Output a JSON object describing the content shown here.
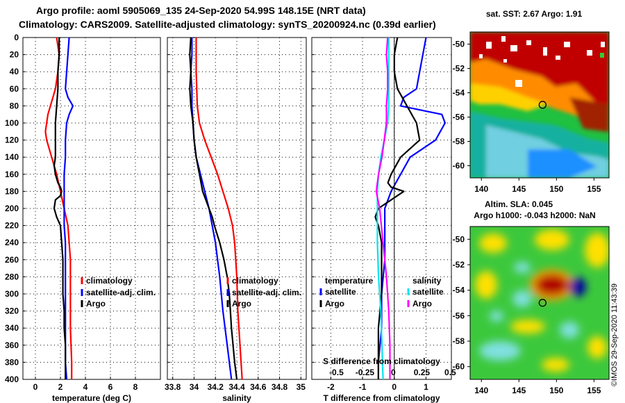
{
  "header": {
    "line1": "Argo profile: aoml 5905069_135 24-Sep-2020 54.99S 148.15E (NRT data)",
    "line2": "Climatology: CARS2009. Satellite-adjusted climatology: synTS_20200924.nc (0.39d earlier)"
  },
  "colors": {
    "climatology": "#ff0000",
    "satellite": "#0000ff",
    "argo": "#000000",
    "sat_salinity": "#00e5ee",
    "argo_salinity": "#ff00ff"
  },
  "chart_data": [
    {
      "type": "line",
      "name": "temperature-profile",
      "xlabel": "temperature (deg C)",
      "xlim": [
        -1,
        10
      ],
      "ylim": [
        400,
        0
      ],
      "x_ticks": [
        "0",
        "2",
        "4",
        "6",
        "8"
      ],
      "x_tick_values": [
        0,
        2,
        4,
        6,
        8
      ],
      "y_ticks": [
        "0",
        "20",
        "40",
        "60",
        "80",
        "100",
        "120",
        "140",
        "160",
        "180",
        "200",
        "220",
        "240",
        "260",
        "280",
        "300",
        "320",
        "340",
        "360",
        "380",
        "400"
      ],
      "y_tick_values": [
        0,
        20,
        40,
        60,
        80,
        100,
        120,
        140,
        160,
        180,
        200,
        220,
        240,
        260,
        280,
        300,
        320,
        340,
        360,
        380,
        400
      ],
      "legend": [
        "climatology",
        "satellite-adj. clim.",
        "Argo"
      ],
      "series": [
        {
          "name": "climatology",
          "color": "#ff0000",
          "depth": [
            0,
            20,
            40,
            60,
            80,
            90,
            100,
            110,
            120,
            130,
            140,
            160,
            180,
            200,
            220,
            240,
            260,
            300,
            340,
            380,
            400
          ],
          "values": [
            1.7,
            1.9,
            1.8,
            1.6,
            1.2,
            1.0,
            0.9,
            0.8,
            0.9,
            1.1,
            1.3,
            1.7,
            2.0,
            2.3,
            2.6,
            2.7,
            2.8,
            2.8,
            2.8,
            2.9,
            2.9
          ]
        },
        {
          "name": "satellite-adj. clim.",
          "color": "#0000ff",
          "depth": [
            0,
            20,
            40,
            60,
            70,
            80,
            90,
            100,
            120,
            140,
            160,
            180,
            200,
            220,
            240,
            260,
            300,
            340,
            380,
            400
          ],
          "values": [
            2.7,
            2.6,
            2.5,
            2.4,
            2.6,
            3.0,
            2.7,
            2.5,
            2.4,
            2.4,
            2.3,
            2.3,
            2.3,
            2.3,
            2.4,
            2.4,
            2.4,
            2.4,
            2.4,
            2.5
          ]
        },
        {
          "name": "Argo",
          "color": "#000000",
          "depth": [
            0,
            20,
            40,
            60,
            80,
            100,
            120,
            140,
            150,
            160,
            170,
            175,
            180,
            185,
            190,
            200,
            210,
            220,
            240,
            260,
            280,
            300,
            320,
            340,
            360,
            380,
            400
          ],
          "values": [
            1.9,
            1.9,
            1.8,
            1.8,
            1.7,
            1.6,
            1.6,
            1.6,
            1.5,
            1.6,
            1.8,
            2.0,
            2.1,
            2.0,
            1.6,
            1.5,
            1.7,
            2.0,
            2.1,
            2.2,
            2.2,
            2.2,
            2.3,
            2.3,
            2.4,
            2.4,
            2.4
          ]
        }
      ]
    },
    {
      "type": "line",
      "name": "salinity-profile",
      "xlabel": "salinity",
      "xlim": [
        33.75,
        35.05
      ],
      "ylim": [
        400,
        0
      ],
      "x_ticks": [
        "33.8",
        "34",
        "34.2",
        "34.4",
        "34.6",
        "34.8",
        "35"
      ],
      "x_tick_values": [
        33.8,
        34,
        34.2,
        34.4,
        34.6,
        34.8,
        35
      ],
      "legend": [
        "climatology",
        "satellite-adj. clim.",
        "Argo"
      ],
      "series": [
        {
          "name": "climatology",
          "color": "#ff0000",
          "depth": [
            0,
            40,
            80,
            100,
            120,
            140,
            160,
            180,
            200,
            220,
            240,
            280,
            320,
            360,
            400
          ],
          "values": [
            34.02,
            34.02,
            34.03,
            34.05,
            34.1,
            34.16,
            34.22,
            34.27,
            34.32,
            34.36,
            34.38,
            34.4,
            34.41,
            34.43,
            34.45
          ]
        },
        {
          "name": "satellite-adj. clim.",
          "color": "#0000ff",
          "depth": [
            0,
            20,
            40,
            60,
            80,
            100,
            120,
            140,
            160,
            180,
            200,
            240,
            280,
            320,
            360,
            400
          ],
          "values": [
            33.98,
            33.98,
            33.97,
            33.98,
            33.98,
            33.99,
            34.0,
            34.02,
            34.06,
            34.1,
            34.14,
            34.2,
            34.24,
            34.27,
            34.31,
            34.35
          ]
        },
        {
          "name": "Argo",
          "color": "#000000",
          "depth": [
            0,
            20,
            40,
            60,
            80,
            100,
            120,
            140,
            160,
            180,
            200,
            210,
            220,
            240,
            260,
            280,
            300,
            340,
            380,
            400
          ],
          "values": [
            33.97,
            33.96,
            33.97,
            33.96,
            33.97,
            33.99,
            34.0,
            34.02,
            34.05,
            34.08,
            34.14,
            34.17,
            34.19,
            34.24,
            34.28,
            34.31,
            34.33,
            34.35,
            34.38,
            34.4
          ]
        }
      ]
    },
    {
      "type": "line",
      "name": "difference-profile",
      "xlabel": "T difference from climatology",
      "xlabel_top": "S difference from climatology",
      "xlim": [
        -2.6,
        1.8
      ],
      "ylim": [
        400,
        0
      ],
      "x_ticks": [
        "-2",
        "-1",
        "0",
        "1"
      ],
      "x_tick_values": [
        -2,
        -1,
        0,
        1
      ],
      "s_ticks": [
        "-0.5",
        "-0.25",
        "0",
        "0.25",
        "0.5"
      ],
      "s_tick_values": [
        -0.5,
        -0.25,
        0,
        0.25,
        0.5
      ],
      "legend_titles": [
        "temperature",
        "salinity"
      ],
      "legend_left": [
        "satellite",
        "Argo"
      ],
      "legend_right": [
        "satellite",
        "Argo"
      ],
      "series": [
        {
          "name": "T satellite",
          "color": "#0000ff",
          "depth": [
            0,
            20,
            40,
            60,
            70,
            80,
            90,
            100,
            120,
            140,
            160,
            180,
            200,
            220,
            240,
            260,
            300,
            340,
            380,
            400
          ],
          "values": [
            1.0,
            0.9,
            0.8,
            0.7,
            0.3,
            0.2,
            1.5,
            1.6,
            1.3,
            0.5,
            0.2,
            -0.1,
            -0.3,
            -0.3,
            -0.3,
            -0.3,
            -0.4,
            -0.4,
            -0.5,
            -0.5
          ]
        },
        {
          "name": "T Argo",
          "color": "#000000",
          "depth": [
            0,
            20,
            40,
            60,
            80,
            100,
            120,
            140,
            160,
            170,
            175,
            180,
            190,
            200,
            210,
            220,
            240,
            260,
            300,
            340,
            380,
            400
          ],
          "values": [
            0.1,
            0.0,
            0.0,
            0.1,
            0.4,
            0.7,
            0.8,
            0.2,
            -0.1,
            -0.2,
            -0.1,
            0.3,
            -0.1,
            -0.5,
            -0.6,
            -0.5,
            -0.4,
            -0.4,
            -0.4,
            -0.5,
            -0.5,
            -0.5
          ]
        },
        {
          "name": "S satellite",
          "color": "#00e5ee",
          "depth": [
            0,
            20,
            40,
            60,
            80,
            100,
            120,
            140,
            160,
            180,
            200,
            240,
            280,
            320,
            360,
            400
          ],
          "values": [
            -0.04,
            -0.04,
            -0.04,
            -0.04,
            -0.04,
            -0.05,
            -0.08,
            -0.11,
            -0.13,
            -0.14,
            -0.14,
            -0.14,
            -0.13,
            -0.11,
            -0.1,
            -0.09
          ]
        },
        {
          "name": "S Argo",
          "color": "#ff00ff",
          "depth": [
            0,
            20,
            40,
            60,
            80,
            100,
            120,
            140,
            160,
            180,
            200,
            240,
            280,
            320,
            360,
            400
          ],
          "values": [
            -0.05,
            -0.06,
            -0.05,
            -0.05,
            -0.06,
            -0.06,
            -0.08,
            -0.1,
            -0.13,
            -0.15,
            -0.12,
            -0.09,
            -0.06,
            -0.04,
            -0.03,
            -0.03
          ]
        }
      ]
    },
    {
      "type": "heatmap",
      "name": "sst-map",
      "title": "sat. SST: 2.67 Argo: 1.91",
      "xlim": [
        138.5,
        157
      ],
      "ylim": [
        -61,
        -49
      ],
      "x_ticks": [
        "140",
        "145",
        "150",
        "155"
      ],
      "x_tick_values": [
        140,
        145,
        150,
        155
      ],
      "y_ticks": [
        "-50",
        "-52",
        "-54",
        "-56",
        "-58",
        "-60"
      ],
      "y_tick_values": [
        -50,
        -52,
        -54,
        -56,
        -58,
        -60
      ],
      "marker": {
        "lon": 148.15,
        "lat": -54.99
      }
    },
    {
      "type": "heatmap",
      "name": "sla-map",
      "title_line1": "Altim. SLA: 0.045",
      "title_line2": "Argo h1000: -0.043 h2000: NaN",
      "xlim": [
        138.5,
        157
      ],
      "ylim": [
        -61,
        -49
      ],
      "x_ticks": [
        "140",
        "145",
        "150",
        "155"
      ],
      "x_tick_values": [
        140,
        145,
        150,
        155
      ],
      "y_ticks": [
        "-50",
        "-52",
        "-54",
        "-56",
        "-58",
        "-60"
      ],
      "y_tick_values": [
        -50,
        -52,
        -54,
        -56,
        -58,
        -60
      ],
      "marker": {
        "lon": 148.15,
        "lat": -54.99
      }
    }
  ],
  "credit": "©IMOS 29-Sep-2020 11:43:39"
}
